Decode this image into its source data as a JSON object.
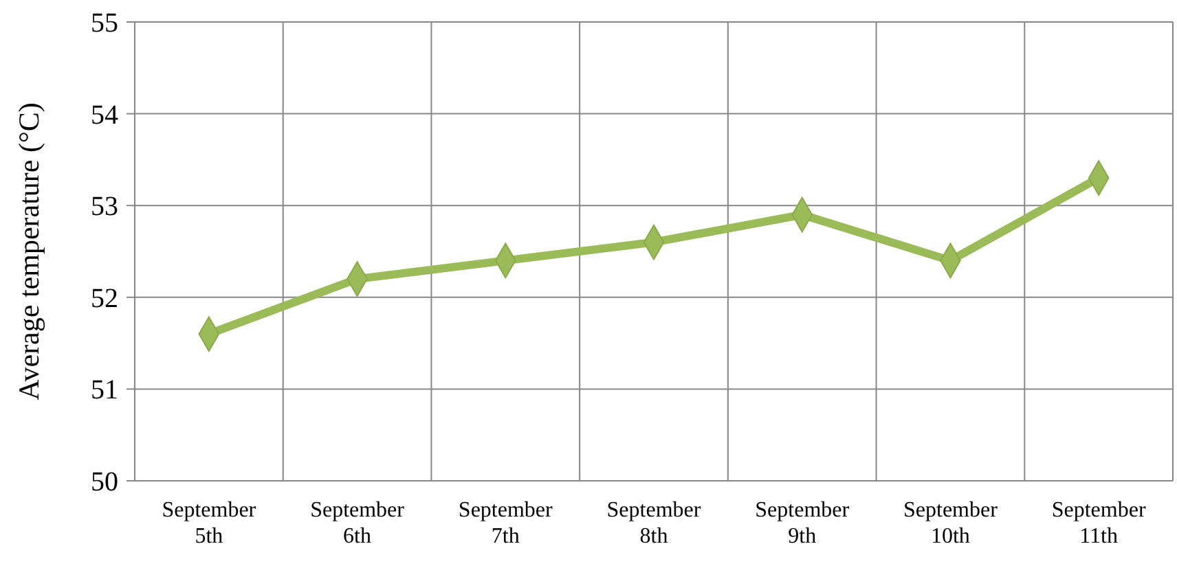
{
  "chart_data": {
    "type": "line",
    "ylabel": "Average temperature (°C)",
    "categories": [
      "September 5th",
      "September 6th",
      "September 7th",
      "September 8th",
      "September 9th",
      "September 10th",
      "September 11th"
    ],
    "series": [
      {
        "color": "#9bbb59",
        "values": [
          51.6,
          52.2,
          52.4,
          52.6,
          52.9,
          52.4,
          53.3
        ]
      }
    ],
    "ylim": [
      50,
      55
    ],
    "yticks": [
      50,
      51,
      52,
      53,
      54,
      55
    ],
    "grid": true,
    "marker": "diamond",
    "line_style": "solid"
  }
}
